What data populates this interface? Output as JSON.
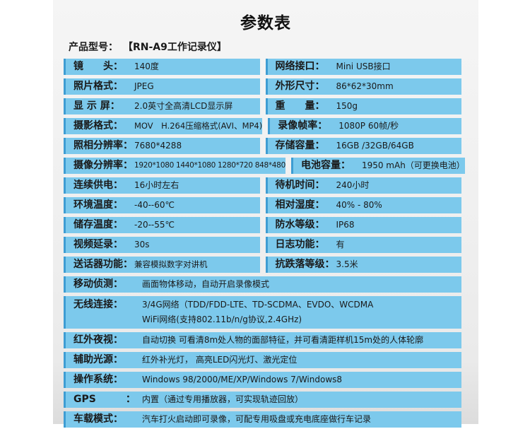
{
  "header": {
    "title": "参数表",
    "model_label": "产品型号：",
    "model_value": "【RN-A9工作记录仪】"
  },
  "colors": {
    "row_background": "#7cc9ec",
    "row_left_border": "#3e9dd3",
    "card_background": "#efefef",
    "text": "#1a1a1a"
  },
  "table": {
    "pairs": [
      {
        "l_label": "镜　　头：",
        "l_value": "140度",
        "r_label": "网络接口：",
        "r_value": "Mini USB接口"
      },
      {
        "l_label": "照片格式：",
        "l_value": "JPEG",
        "r_label": "外形尺寸：",
        "r_value": "86*62*30mm"
      },
      {
        "l_label": "显 示 屏：",
        "l_value": "2.0英寸全高清LCD显示屏",
        "r_label": "重　　量：",
        "r_value": "150g"
      },
      {
        "l_label": "摄影格式：",
        "l_value": "MOV　H.264压缩格式(AVI、MP4)",
        "r_label": "录像帧率：",
        "r_value": "1080P 60帧/秒"
      },
      {
        "l_label": "照相分辨率：",
        "l_value": "7680*4288",
        "r_label": "存储容量：",
        "r_value": "16GB /32GB/64GB"
      },
      {
        "l_label": "摄像分辨率：",
        "l_value": "1920*1080 1440*1080 1280*720 848*480",
        "r_label": "电池容量：",
        "r_value": "1950 mAh（可更换电池）"
      },
      {
        "l_label": "连续供电：",
        "l_value": "16小时左右",
        "r_label": "待机时间：",
        "r_value": "240小时"
      },
      {
        "l_label": "环境温度：",
        "l_value": "-40--60℃",
        "r_label": "相对湿度：",
        "r_value": "40% - 80%"
      },
      {
        "l_label": "储存温度：",
        "l_value": "-20--55℃",
        "r_label": "防水等级：",
        "r_value": "IP68"
      },
      {
        "l_label": "视频延录：",
        "l_value": "30s",
        "r_label": "日志功能：",
        "r_value": "有"
      },
      {
        "l_label": "送话器功能：",
        "l_value": "兼容模拟数字对讲机",
        "r_label": "抗跌落等级：",
        "r_value": "3.5米"
      }
    ],
    "full": [
      {
        "label": "移动侦测：",
        "value": "画面物体移动，自动开启录像模式"
      },
      {
        "label": "无线连接：",
        "value": "3/4G网络（TDD/FDD-LTE、TD-SCDMA、EVDO、WCDMA",
        "value2": "WiFi网络(支持802.11b/n/g协议,2.4GHz)"
      },
      {
        "label": "红外夜视：",
        "value": "自动切换 可看清8m处人物的面部特征，并可看清距样机15m处的人体轮廓"
      },
      {
        "label": "辅助光源：",
        "value": "红外补光灯， 高亮LED闪光灯、激光定位"
      },
      {
        "label": "操作系统：",
        "value": "Windows 98/2000/ME/XP/Windows 7/Windows8"
      },
      {
        "label": "GPS　　　：",
        "value": "内置（通过专用播放器，可实现轨迹回放）"
      },
      {
        "label": "车载模式：",
        "value": "汽车打火启动即可录像，可配专用吸盘或充电底座做行车记录"
      }
    ]
  }
}
